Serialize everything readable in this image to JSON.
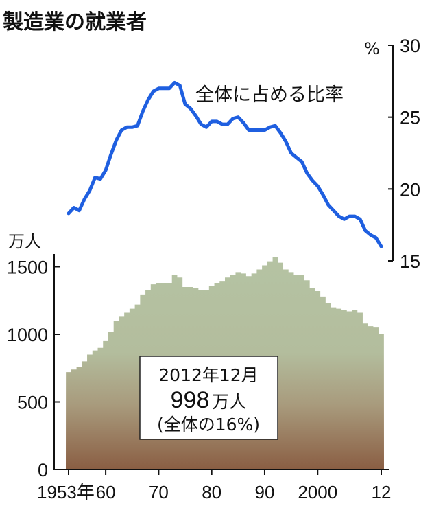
{
  "title": "製造業の就業者",
  "chart_data": [
    {
      "type": "line",
      "series_label": "全体に占める比率",
      "unit": "%",
      "ylim": [
        15,
        30
      ],
      "yticks": [
        "15",
        "20",
        "25",
        "30"
      ],
      "color": "#1f5fe0",
      "x": [
        1953,
        1954,
        1955,
        1956,
        1957,
        1958,
        1959,
        1960,
        1961,
        1962,
        1963,
        1964,
        1965,
        1966,
        1967,
        1968,
        1969,
        1970,
        1971,
        1972,
        1973,
        1974,
        1975,
        1976,
        1977,
        1978,
        1979,
        1980,
        1981,
        1982,
        1983,
        1984,
        1985,
        1986,
        1987,
        1988,
        1989,
        1990,
        1991,
        1992,
        1993,
        1994,
        1995,
        1996,
        1997,
        1998,
        1999,
        2000,
        2001,
        2002,
        2003,
        2004,
        2005,
        2006,
        2007,
        2008,
        2009,
        2010,
        2011,
        2012
      ],
      "values": [
        18.3,
        18.7,
        18.5,
        19.3,
        19.9,
        20.8,
        20.7,
        21.3,
        22.4,
        23.4,
        24.1,
        24.3,
        24.3,
        24.4,
        25.4,
        26.2,
        26.8,
        27.0,
        27.0,
        27.0,
        27.4,
        27.2,
        25.9,
        25.6,
        25.1,
        24.5,
        24.3,
        24.7,
        24.7,
        24.5,
        24.5,
        24.9,
        25.0,
        24.6,
        24.1,
        24.1,
        24.1,
        24.1,
        24.3,
        24.4,
        23.9,
        23.3,
        22.5,
        22.2,
        21.9,
        21.1,
        20.6,
        20.2,
        19.6,
        18.9,
        18.5,
        18.1,
        17.9,
        18.1,
        18.1,
        17.9,
        17.1,
        16.8,
        16.6,
        16.0
      ]
    },
    {
      "type": "area",
      "unit": "万人",
      "ylim": [
        0,
        1600
      ],
      "yticks": [
        "0",
        "500",
        "1000",
        "1500"
      ],
      "x": [
        1953,
        1954,
        1955,
        1956,
        1957,
        1958,
        1959,
        1960,
        1961,
        1962,
        1963,
        1964,
        1965,
        1966,
        1967,
        1968,
        1969,
        1970,
        1971,
        1972,
        1973,
        1974,
        1975,
        1976,
        1977,
        1978,
        1979,
        1980,
        1981,
        1982,
        1983,
        1984,
        1985,
        1986,
        1987,
        1988,
        1989,
        1990,
        1991,
        1992,
        1993,
        1994,
        1995,
        1996,
        1997,
        1998,
        1999,
        2000,
        2001,
        2002,
        2003,
        2004,
        2005,
        2006,
        2007,
        2008,
        2009,
        2010,
        2011,
        2012
      ],
      "values": [
        720,
        740,
        760,
        800,
        850,
        880,
        900,
        950,
        1020,
        1100,
        1130,
        1160,
        1190,
        1220,
        1290,
        1330,
        1370,
        1380,
        1380,
        1380,
        1440,
        1420,
        1350,
        1350,
        1340,
        1330,
        1330,
        1360,
        1380,
        1390,
        1420,
        1440,
        1460,
        1450,
        1430,
        1450,
        1480,
        1510,
        1540,
        1570,
        1530,
        1480,
        1460,
        1440,
        1440,
        1400,
        1340,
        1320,
        1280,
        1230,
        1200,
        1190,
        1180,
        1170,
        1180,
        1160,
        1080,
        1060,
        1050,
        1000
      ],
      "fill_top": "#b5c3a3",
      "fill_bottom": "#8a5e43"
    }
  ],
  "x_axis": {
    "tick_years": [
      1953,
      1960,
      1970,
      1980,
      1990,
      2000,
      2012
    ],
    "tick_labels": [
      "1953年",
      "60",
      "70",
      "80",
      "90",
      "2000",
      "12"
    ]
  },
  "annotation": {
    "date": "2012年12月",
    "value": "998",
    "unit": "万人",
    "share": "(全体の16%)"
  }
}
